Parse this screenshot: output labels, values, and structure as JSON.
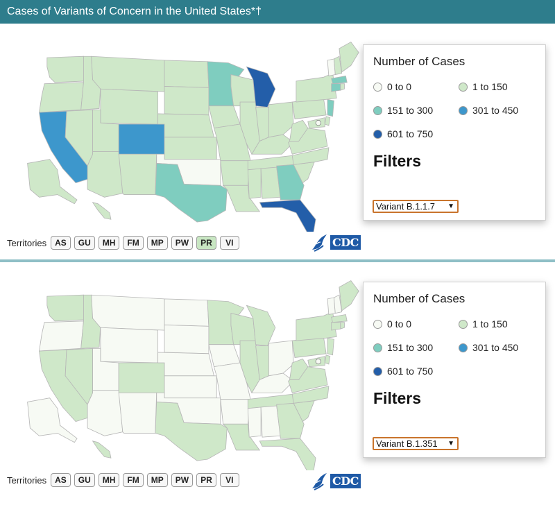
{
  "header": {
    "title": "Cases of Variants of Concern in the United States*†"
  },
  "colors": {
    "c0": "#f7faf4",
    "c1": "#cfe8c9",
    "c2": "#7fcdbf",
    "c3": "#3d97cc",
    "c4": "#235ea9",
    "title_bar": "#2e7d8c"
  },
  "legend": {
    "title": "Number of Cases",
    "items": [
      {
        "label": "0 to 0",
        "color": "#f7faf4"
      },
      {
        "label": "1 to 150",
        "color": "#cfe8c9"
      },
      {
        "label": "151 to 300",
        "color": "#7fcdbf"
      },
      {
        "label": "301 to 450",
        "color": "#3d97cc"
      },
      {
        "label": "601 to 750",
        "color": "#235ea9"
      }
    ]
  },
  "filters_title": "Filters",
  "territories_label": "Territories",
  "territories": [
    "AS",
    "GU",
    "MH",
    "FM",
    "MP",
    "PW",
    "PR",
    "VI"
  ],
  "logo": {
    "text": "CDC",
    "icon": "cdc-eagle-icon"
  },
  "panels": [
    {
      "variant": "Variant B.1.1.7",
      "highlighted_territory": "PR",
      "state_levels": {
        "WA": 1,
        "OR": 1,
        "CA": 3,
        "NV": 1,
        "ID": 1,
        "MT": 1,
        "WY": 1,
        "UT": 1,
        "AZ": 1,
        "CO": 3,
        "NM": 1,
        "ND": 1,
        "SD": 1,
        "NE": 1,
        "KS": 1,
        "OK": 0,
        "TX": 2,
        "MN": 2,
        "IA": 1,
        "MO": 1,
        "AR": 1,
        "LA": 1,
        "WI": 1,
        "IL": 1,
        "MI": 4,
        "IN": 1,
        "OH": 1,
        "KY": 1,
        "TN": 1,
        "MS": 1,
        "AL": 1,
        "GA": 2,
        "FL": 4,
        "SC": 1,
        "NC": 1,
        "VA": 1,
        "WV": 1,
        "PA": 1,
        "NY": 1,
        "VT": 0,
        "NH": 1,
        "ME": 1,
        "MA": 2,
        "CT": 2,
        "RI": 1,
        "NJ": 2,
        "DE": 1,
        "MD": 1,
        "AK": 1,
        "HI": 1
      }
    },
    {
      "variant": "Variant B.1.351",
      "highlighted_territory": "",
      "state_levels": {
        "WA": 1,
        "OR": 0,
        "CA": 1,
        "NV": 1,
        "ID": 1,
        "MT": 0,
        "WY": 0,
        "UT": 0,
        "AZ": 0,
        "CO": 1,
        "NM": 0,
        "ND": 0,
        "SD": 0,
        "NE": 0,
        "KS": 0,
        "OK": 0,
        "TX": 1,
        "MN": 1,
        "IA": 0,
        "MO": 0,
        "AR": 0,
        "LA": 1,
        "WI": 1,
        "IL": 1,
        "MI": 1,
        "IN": 1,
        "OH": 0,
        "KY": 0,
        "TN": 1,
        "MS": 0,
        "AL": 0,
        "GA": 1,
        "FL": 1,
        "SC": 1,
        "NC": 1,
        "VA": 1,
        "WV": 1,
        "PA": 1,
        "NY": 1,
        "VT": 0,
        "NH": 0,
        "ME": 1,
        "MA": 1,
        "CT": 1,
        "RI": 1,
        "NJ": 1,
        "DE": 1,
        "MD": 1,
        "AK": 0,
        "HI": 1
      }
    }
  ]
}
